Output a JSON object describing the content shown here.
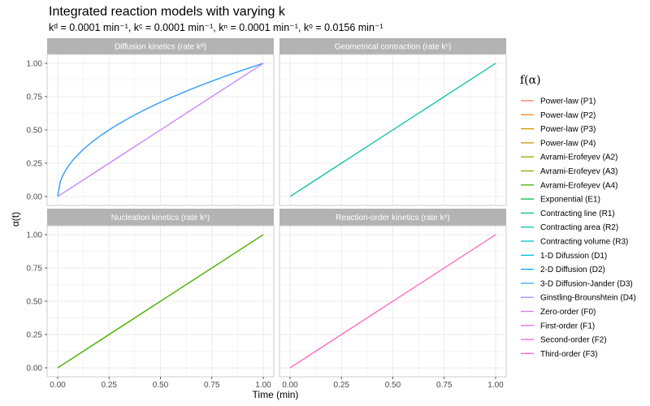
{
  "chart_data": {
    "type": "line",
    "title": "Integrated reaction models with varying k",
    "subtitle": "kᵈ = 0.0001 min⁻¹, kᶜ = 0.0001 min⁻¹, kⁿ = 0.0001 min⁻¹, kᵒ = 0.0156 min⁻¹",
    "xlabel": "Time (min)",
    "ylabel": "α(t)",
    "xlim": [
      0,
      1
    ],
    "ylim": [
      0,
      1
    ],
    "x_ticks": [
      "0.00",
      "0.25",
      "0.50",
      "0.75",
      "1.00"
    ],
    "y_ticks": [
      "0.00",
      "0.25",
      "0.50",
      "0.75",
      "1.00"
    ],
    "grid": true,
    "legend_position": "right",
    "legend_title": "f(α)",
    "legend": [
      {
        "name": "Power-law (P1)",
        "color": "#F8766D"
      },
      {
        "name": "Power-law (P2)",
        "color": "#EA8331"
      },
      {
        "name": "Power-law (P3)",
        "color": "#D89000"
      },
      {
        "name": "Power-law (P4)",
        "color": "#C09B00"
      },
      {
        "name": "Avrami-Erofeyev (A2)",
        "color": "#A3A500"
      },
      {
        "name": "Avrami-Erofeyev (A3)",
        "color": "#7CAE00"
      },
      {
        "name": "Avrami-Erofeyev (A4)",
        "color": "#39B600"
      },
      {
        "name": "Exponential (E1)",
        "color": "#00BB4E"
      },
      {
        "name": "Contracting line (R1)",
        "color": "#00BF7D"
      },
      {
        "name": "Contracting area (R2)",
        "color": "#00C1A3"
      },
      {
        "name": "Contracting volume (R3)",
        "color": "#00BFC4"
      },
      {
        "name": "1-D Difussion (D1)",
        "color": "#00BAE0"
      },
      {
        "name": "2-D Diffusion (D2)",
        "color": "#00B0F6"
      },
      {
        "name": "3-D Diffusion-Jander (D3)",
        "color": "#35A2FF"
      },
      {
        "name": "Ginstling-Brounshtein (D4)",
        "color": "#9590FF"
      },
      {
        "name": "Zero-order (F0)",
        "color": "#C77CFF"
      },
      {
        "name": "First-order (F1)",
        "color": "#E76BF3"
      },
      {
        "name": "Second-order (F2)",
        "color": "#FA62DB"
      },
      {
        "name": "Third-order (F3)",
        "color": "#FF62BC"
      }
    ],
    "panels": [
      {
        "strip": "Diffusion kinetics (rate kᵈ)",
        "series": [
          {
            "name": "1-D Difussion (D1)",
            "color": "#5B9CF0",
            "kind": "sqrt",
            "x": [
              0,
              1
            ],
            "y": [
              0,
              1
            ]
          },
          {
            "name": "2-D Diffusion (D2)",
            "color": "#35A2FF",
            "kind": "sqrt",
            "x": [
              0,
              1
            ],
            "y": [
              0,
              1
            ]
          },
          {
            "name": "Zero-order (F0)",
            "color": "#C77CFF",
            "kind": "linear",
            "x": [
              0,
              1
            ],
            "y": [
              0,
              1
            ]
          }
        ]
      },
      {
        "strip": "Geometrical contraction (rate kᶜ)",
        "series": [
          {
            "name": "Contracting area (R2)",
            "color": "#00C1A3",
            "kind": "linear",
            "x": [
              0,
              1
            ],
            "y": [
              0,
              1
            ]
          }
        ]
      },
      {
        "strip": "Nucleation kinetics (rate kⁿ)",
        "series": [
          {
            "name": "Power-law (P3)",
            "color": "#D89000",
            "kind": "linear",
            "x": [
              0,
              1
            ],
            "y": [
              0,
              1
            ]
          },
          {
            "name": "Avrami-Erofeyev (A4)",
            "color": "#39B600",
            "kind": "linear",
            "x": [
              0,
              1
            ],
            "y": [
              0,
              1
            ]
          }
        ]
      },
      {
        "strip": "Reaction-order kinetics (rate kᵒ)",
        "series": [
          {
            "name": "Third-order (F3)",
            "color": "#FF62BC",
            "kind": "linear",
            "x": [
              0,
              1
            ],
            "y": [
              0,
              1
            ]
          }
        ]
      }
    ]
  }
}
